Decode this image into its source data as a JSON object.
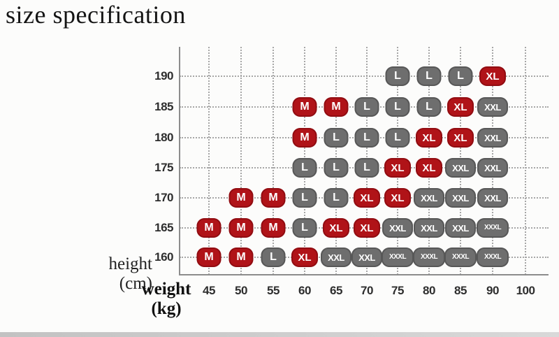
{
  "title": "size specification",
  "chart_data": {
    "type": "scatter",
    "title": "size specification",
    "xlabel": "weight (kg)",
    "ylabel": "height (cm)",
    "xlabel_line1": "weight",
    "xlabel_line2": "(kg)",
    "ylabel_line1": "height",
    "ylabel_line2": "(cm)",
    "x_ticks": [
      "45",
      "50",
      "55",
      "60",
      "65",
      "70",
      "75",
      "80",
      "85",
      "90",
      "100"
    ],
    "y_ticks": [
      "190",
      "185",
      "180",
      "175",
      "170",
      "165",
      "160"
    ],
    "grid": "dotted",
    "colors": {
      "red": "#b01318",
      "gray": "#6e6e6e",
      "badge_text": "#ffffff"
    },
    "points": [
      {
        "height": "190",
        "weight": "75",
        "size": "L",
        "color": "gray"
      },
      {
        "height": "190",
        "weight": "80",
        "size": "L",
        "color": "gray"
      },
      {
        "height": "190",
        "weight": "85",
        "size": "L",
        "color": "gray"
      },
      {
        "height": "190",
        "weight": "90",
        "size": "XL",
        "color": "red"
      },
      {
        "height": "185",
        "weight": "60",
        "size": "M",
        "color": "red"
      },
      {
        "height": "185",
        "weight": "65",
        "size": "M",
        "color": "red"
      },
      {
        "height": "185",
        "weight": "70",
        "size": "L",
        "color": "gray"
      },
      {
        "height": "185",
        "weight": "75",
        "size": "L",
        "color": "gray"
      },
      {
        "height": "185",
        "weight": "80",
        "size": "L",
        "color": "gray"
      },
      {
        "height": "185",
        "weight": "85",
        "size": "XL",
        "color": "red"
      },
      {
        "height": "185",
        "weight": "90",
        "size": "XXL",
        "color": "gray"
      },
      {
        "height": "180",
        "weight": "60",
        "size": "M",
        "color": "red"
      },
      {
        "height": "180",
        "weight": "65",
        "size": "L",
        "color": "gray"
      },
      {
        "height": "180",
        "weight": "70",
        "size": "L",
        "color": "gray"
      },
      {
        "height": "180",
        "weight": "75",
        "size": "L",
        "color": "gray"
      },
      {
        "height": "180",
        "weight": "80",
        "size": "XL",
        "color": "red"
      },
      {
        "height": "180",
        "weight": "85",
        "size": "XL",
        "color": "red"
      },
      {
        "height": "180",
        "weight": "90",
        "size": "XXL",
        "color": "gray"
      },
      {
        "height": "175",
        "weight": "60",
        "size": "L",
        "color": "gray"
      },
      {
        "height": "175",
        "weight": "65",
        "size": "L",
        "color": "gray"
      },
      {
        "height": "175",
        "weight": "70",
        "size": "L",
        "color": "gray"
      },
      {
        "height": "175",
        "weight": "75",
        "size": "XL",
        "color": "red"
      },
      {
        "height": "175",
        "weight": "80",
        "size": "XL",
        "color": "red"
      },
      {
        "height": "175",
        "weight": "85",
        "size": "XXL",
        "color": "gray"
      },
      {
        "height": "175",
        "weight": "90",
        "size": "XXL",
        "color": "gray"
      },
      {
        "height": "170",
        "weight": "50",
        "size": "M",
        "color": "red"
      },
      {
        "height": "170",
        "weight": "55",
        "size": "M",
        "color": "red"
      },
      {
        "height": "170",
        "weight": "60",
        "size": "L",
        "color": "gray"
      },
      {
        "height": "170",
        "weight": "65",
        "size": "L",
        "color": "gray"
      },
      {
        "height": "170",
        "weight": "70",
        "size": "XL",
        "color": "red"
      },
      {
        "height": "170",
        "weight": "75",
        "size": "XL",
        "color": "red"
      },
      {
        "height": "170",
        "weight": "80",
        "size": "XXL",
        "color": "gray"
      },
      {
        "height": "170",
        "weight": "85",
        "size": "XXL",
        "color": "gray"
      },
      {
        "height": "170",
        "weight": "90",
        "size": "XXL",
        "color": "gray"
      },
      {
        "height": "165",
        "weight": "45",
        "size": "M",
        "color": "red"
      },
      {
        "height": "165",
        "weight": "50",
        "size": "M",
        "color": "red"
      },
      {
        "height": "165",
        "weight": "55",
        "size": "M",
        "color": "red"
      },
      {
        "height": "165",
        "weight": "60",
        "size": "L",
        "color": "gray"
      },
      {
        "height": "165",
        "weight": "65",
        "size": "XL",
        "color": "red"
      },
      {
        "height": "165",
        "weight": "70",
        "size": "XL",
        "color": "red"
      },
      {
        "height": "165",
        "weight": "75",
        "size": "XXL",
        "color": "gray"
      },
      {
        "height": "165",
        "weight": "80",
        "size": "XXL",
        "color": "gray"
      },
      {
        "height": "165",
        "weight": "85",
        "size": "XXL",
        "color": "gray"
      },
      {
        "height": "165",
        "weight": "90",
        "size": "XXXL",
        "color": "gray"
      },
      {
        "height": "160",
        "weight": "45",
        "size": "M",
        "color": "red"
      },
      {
        "height": "160",
        "weight": "50",
        "size": "M",
        "color": "red"
      },
      {
        "height": "160",
        "weight": "55",
        "size": "L",
        "color": "gray"
      },
      {
        "height": "160",
        "weight": "60",
        "size": "XL",
        "color": "red"
      },
      {
        "height": "160",
        "weight": "65",
        "size": "XXL",
        "color": "gray"
      },
      {
        "height": "160",
        "weight": "70",
        "size": "XXL",
        "color": "gray"
      },
      {
        "height": "160",
        "weight": "75",
        "size": "XXXL",
        "color": "gray"
      },
      {
        "height": "160",
        "weight": "80",
        "size": "XXXL",
        "color": "gray"
      },
      {
        "height": "160",
        "weight": "85",
        "size": "XXXL",
        "color": "gray"
      },
      {
        "height": "160",
        "weight": "90",
        "size": "XXXL",
        "color": "gray"
      }
    ]
  }
}
